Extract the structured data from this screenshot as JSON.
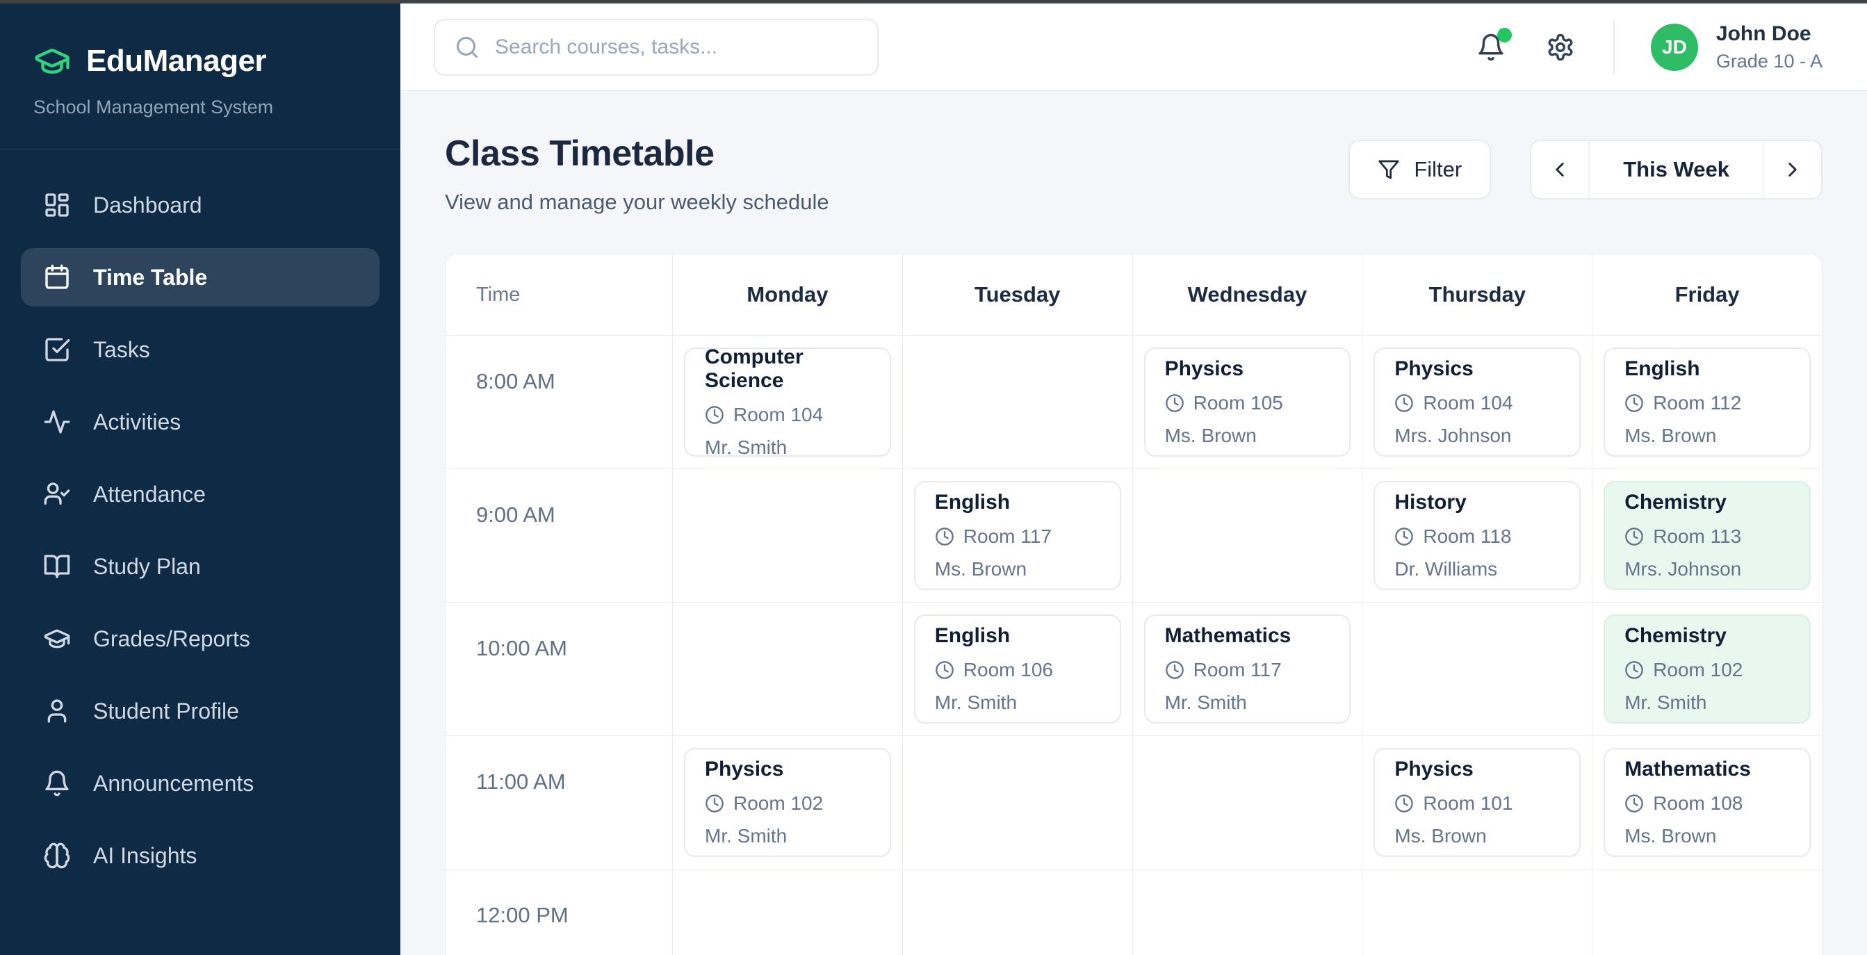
{
  "app": {
    "name": "EduManager",
    "tagline": "School Management System",
    "logo_icon": "graduation-cap-icon"
  },
  "sidebar": {
    "items": [
      {
        "label": "Dashboard",
        "icon": "dashboard-icon",
        "active": false
      },
      {
        "label": "Time Table",
        "icon": "calendar-icon",
        "active": true
      },
      {
        "label": "Tasks",
        "icon": "tasks-icon",
        "active": false
      },
      {
        "label": "Activities",
        "icon": "activity-icon",
        "active": false
      },
      {
        "label": "Attendance",
        "icon": "attendance-icon",
        "active": false
      },
      {
        "label": "Study Plan",
        "icon": "book-open-icon",
        "active": false
      },
      {
        "label": "Grades/Reports",
        "icon": "graduation-cap-icon",
        "active": false
      },
      {
        "label": "Student Profile",
        "icon": "user-icon",
        "active": false
      },
      {
        "label": "Announcements",
        "icon": "bell-icon",
        "active": false
      },
      {
        "label": "AI Insights",
        "icon": "brain-icon",
        "active": false
      }
    ]
  },
  "topbar": {
    "search_placeholder": "Search courses, tasks...",
    "notification_dot": true,
    "user": {
      "initials": "JD",
      "name": "John Doe",
      "grade": "Grade 10 - A"
    }
  },
  "page": {
    "title": "Class Timetable",
    "subtitle": "View and manage your weekly schedule",
    "filter_label": "Filter",
    "week_label": "This Week"
  },
  "timetable": {
    "columns": [
      "Time",
      "Monday",
      "Tuesday",
      "Wednesday",
      "Thursday",
      "Friday"
    ],
    "rows": [
      {
        "time": "8:00 AM",
        "cells": [
          {
            "subject": "Computer Science",
            "room": "Room 104",
            "teacher": "Mr. Smith",
            "highlight": false
          },
          null,
          {
            "subject": "Physics",
            "room": "Room 105",
            "teacher": "Ms. Brown",
            "highlight": false
          },
          {
            "subject": "Physics",
            "room": "Room 104",
            "teacher": "Mrs. Johnson",
            "highlight": false
          },
          {
            "subject": "English",
            "room": "Room 112",
            "teacher": "Ms. Brown",
            "highlight": false
          }
        ]
      },
      {
        "time": "9:00 AM",
        "cells": [
          null,
          {
            "subject": "English",
            "room": "Room 117",
            "teacher": "Ms. Brown",
            "highlight": false
          },
          null,
          {
            "subject": "History",
            "room": "Room 118",
            "teacher": "Dr. Williams",
            "highlight": false
          },
          {
            "subject": "Chemistry",
            "room": "Room 113",
            "teacher": "Mrs. Johnson",
            "highlight": true
          }
        ]
      },
      {
        "time": "10:00 AM",
        "cells": [
          null,
          {
            "subject": "English",
            "room": "Room 106",
            "teacher": "Mr. Smith",
            "highlight": false
          },
          {
            "subject": "Mathematics",
            "room": "Room 117",
            "teacher": "Mr. Smith",
            "highlight": false
          },
          null,
          {
            "subject": "Chemistry",
            "room": "Room 102",
            "teacher": "Mr. Smith",
            "highlight": true
          }
        ]
      },
      {
        "time": "11:00 AM",
        "cells": [
          {
            "subject": "Physics",
            "room": "Room 102",
            "teacher": "Mr. Smith",
            "highlight": false
          },
          null,
          null,
          {
            "subject": "Physics",
            "room": "Room 101",
            "teacher": "Ms. Brown",
            "highlight": false
          },
          {
            "subject": "Mathematics",
            "room": "Room 108",
            "teacher": "Ms. Brown",
            "highlight": false
          }
        ]
      },
      {
        "time": "12:00 PM",
        "cells": [
          null,
          null,
          null,
          null,
          null
        ]
      }
    ]
  },
  "colors": {
    "accent_green": "#22c55e",
    "avatar_green": "#2ebc64",
    "sidebar_bg": "#0e2a44",
    "highlight_card_bg": "#e9f8ef",
    "page_bg": "#f4f6fa"
  }
}
